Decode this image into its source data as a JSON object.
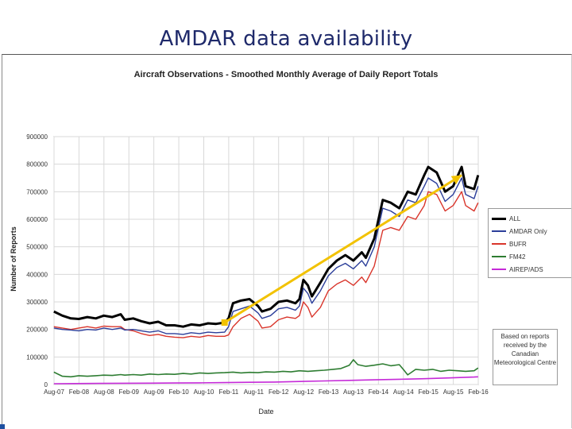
{
  "slide": {
    "title": "AMDAR data availability",
    "note": "Based on reports received by the Canadian Meteorological Centre"
  },
  "chart_data": {
    "type": "line",
    "title": "Aircraft Observations - Smoothed Monthly Average of Daily Report Totals",
    "xlabel": "Date",
    "ylabel": "Number of Reports",
    "ylim": [
      0,
      900000
    ],
    "yticks": [
      0,
      100000,
      200000,
      300000,
      400000,
      500000,
      600000,
      700000,
      800000,
      900000
    ],
    "x_range": [
      2007.583,
      2016.083
    ],
    "categories": [
      "Aug-07",
      "Feb-08",
      "Aug-08",
      "Feb-09",
      "Aug-09",
      "Feb-10",
      "Aug-10",
      "Feb-11",
      "Aug-11",
      "Feb-12",
      "Aug-12",
      "Feb-13",
      "Aug-13",
      "Feb-14",
      "Aug-14",
      "Feb-15",
      "Aug-15",
      "Feb-16"
    ],
    "grid": true,
    "legend": "right",
    "series": [
      {
        "name": "ALL",
        "color": "#000000",
        "values": [
          [
            2007.58,
            265000
          ],
          [
            2007.75,
            250000
          ],
          [
            2007.92,
            240000
          ],
          [
            2008.08,
            238000
          ],
          [
            2008.25,
            245000
          ],
          [
            2008.42,
            240000
          ],
          [
            2008.58,
            250000
          ],
          [
            2008.75,
            245000
          ],
          [
            2008.92,
            255000
          ],
          [
            2009.0,
            235000
          ],
          [
            2009.17,
            240000
          ],
          [
            2009.33,
            230000
          ],
          [
            2009.5,
            222000
          ],
          [
            2009.67,
            228000
          ],
          [
            2009.83,
            215000
          ],
          [
            2010.0,
            215000
          ],
          [
            2010.17,
            210000
          ],
          [
            2010.33,
            218000
          ],
          [
            2010.5,
            215000
          ],
          [
            2010.67,
            222000
          ],
          [
            2010.83,
            220000
          ],
          [
            2011.0,
            225000
          ],
          [
            2011.08,
            240000
          ],
          [
            2011.17,
            295000
          ],
          [
            2011.33,
            305000
          ],
          [
            2011.5,
            310000
          ],
          [
            2011.67,
            285000
          ],
          [
            2011.75,
            265000
          ],
          [
            2011.92,
            275000
          ],
          [
            2012.08,
            300000
          ],
          [
            2012.25,
            305000
          ],
          [
            2012.42,
            295000
          ],
          [
            2012.5,
            310000
          ],
          [
            2012.58,
            380000
          ],
          [
            2012.67,
            360000
          ],
          [
            2012.75,
            320000
          ],
          [
            2012.92,
            370000
          ],
          [
            2013.08,
            420000
          ],
          [
            2013.25,
            450000
          ],
          [
            2013.42,
            470000
          ],
          [
            2013.58,
            450000
          ],
          [
            2013.75,
            480000
          ],
          [
            2013.83,
            460000
          ],
          [
            2014.0,
            530000
          ],
          [
            2014.17,
            670000
          ],
          [
            2014.33,
            660000
          ],
          [
            2014.5,
            640000
          ],
          [
            2014.67,
            700000
          ],
          [
            2014.83,
            690000
          ],
          [
            2015.0,
            760000
          ],
          [
            2015.08,
            790000
          ],
          [
            2015.25,
            770000
          ],
          [
            2015.42,
            700000
          ],
          [
            2015.58,
            720000
          ],
          [
            2015.75,
            790000
          ],
          [
            2015.83,
            720000
          ],
          [
            2016.0,
            710000
          ],
          [
            2016.08,
            760000
          ]
        ]
      },
      {
        "name": "AMDAR Only",
        "color": "#2b3e9a",
        "values": [
          [
            2007.58,
            205000
          ],
          [
            2007.75,
            200000
          ],
          [
            2007.92,
            198000
          ],
          [
            2008.08,
            195000
          ],
          [
            2008.25,
            200000
          ],
          [
            2008.42,
            198000
          ],
          [
            2008.58,
            205000
          ],
          [
            2008.75,
            200000
          ],
          [
            2008.92,
            205000
          ],
          [
            2009.0,
            198000
          ],
          [
            2009.17,
            200000
          ],
          [
            2009.33,
            195000
          ],
          [
            2009.5,
            190000
          ],
          [
            2009.67,
            195000
          ],
          [
            2009.83,
            185000
          ],
          [
            2010.0,
            185000
          ],
          [
            2010.17,
            182000
          ],
          [
            2010.33,
            188000
          ],
          [
            2010.5,
            185000
          ],
          [
            2010.67,
            190000
          ],
          [
            2010.83,
            188000
          ],
          [
            2011.0,
            190000
          ],
          [
            2011.08,
            210000
          ],
          [
            2011.17,
            265000
          ],
          [
            2011.33,
            275000
          ],
          [
            2011.5,
            285000
          ],
          [
            2011.67,
            260000
          ],
          [
            2011.75,
            240000
          ],
          [
            2011.92,
            250000
          ],
          [
            2012.08,
            275000
          ],
          [
            2012.25,
            280000
          ],
          [
            2012.42,
            270000
          ],
          [
            2012.5,
            285000
          ],
          [
            2012.58,
            350000
          ],
          [
            2012.67,
            330000
          ],
          [
            2012.75,
            295000
          ],
          [
            2012.92,
            340000
          ],
          [
            2013.08,
            395000
          ],
          [
            2013.25,
            425000
          ],
          [
            2013.42,
            440000
          ],
          [
            2013.58,
            420000
          ],
          [
            2013.75,
            450000
          ],
          [
            2013.83,
            430000
          ],
          [
            2014.0,
            500000
          ],
          [
            2014.17,
            640000
          ],
          [
            2014.33,
            630000
          ],
          [
            2014.5,
            610000
          ],
          [
            2014.67,
            670000
          ],
          [
            2014.83,
            660000
          ],
          [
            2015.0,
            720000
          ],
          [
            2015.08,
            750000
          ],
          [
            2015.25,
            730000
          ],
          [
            2015.42,
            665000
          ],
          [
            2015.58,
            690000
          ],
          [
            2015.75,
            750000
          ],
          [
            2015.83,
            690000
          ],
          [
            2016.0,
            675000
          ],
          [
            2016.08,
            720000
          ]
        ]
      },
      {
        "name": "BUFR",
        "color": "#d9352b",
        "values": [
          [
            2007.58,
            210000
          ],
          [
            2007.75,
            205000
          ],
          [
            2007.92,
            200000
          ],
          [
            2008.08,
            205000
          ],
          [
            2008.25,
            210000
          ],
          [
            2008.42,
            205000
          ],
          [
            2008.58,
            212000
          ],
          [
            2008.75,
            210000
          ],
          [
            2008.92,
            210000
          ],
          [
            2009.0,
            200000
          ],
          [
            2009.17,
            195000
          ],
          [
            2009.33,
            185000
          ],
          [
            2009.5,
            178000
          ],
          [
            2009.67,
            182000
          ],
          [
            2009.83,
            175000
          ],
          [
            2010.0,
            172000
          ],
          [
            2010.17,
            170000
          ],
          [
            2010.33,
            175000
          ],
          [
            2010.5,
            172000
          ],
          [
            2010.67,
            178000
          ],
          [
            2010.83,
            175000
          ],
          [
            2011.0,
            175000
          ],
          [
            2011.08,
            180000
          ],
          [
            2011.17,
            210000
          ],
          [
            2011.33,
            240000
          ],
          [
            2011.5,
            255000
          ],
          [
            2011.67,
            230000
          ],
          [
            2011.75,
            205000
          ],
          [
            2011.92,
            210000
          ],
          [
            2012.08,
            235000
          ],
          [
            2012.25,
            245000
          ],
          [
            2012.42,
            240000
          ],
          [
            2012.5,
            250000
          ],
          [
            2012.58,
            300000
          ],
          [
            2012.67,
            280000
          ],
          [
            2012.75,
            245000
          ],
          [
            2012.92,
            280000
          ],
          [
            2013.08,
            340000
          ],
          [
            2013.25,
            365000
          ],
          [
            2013.42,
            380000
          ],
          [
            2013.58,
            360000
          ],
          [
            2013.75,
            390000
          ],
          [
            2013.83,
            370000
          ],
          [
            2014.0,
            430000
          ],
          [
            2014.17,
            560000
          ],
          [
            2014.33,
            570000
          ],
          [
            2014.5,
            560000
          ],
          [
            2014.67,
            610000
          ],
          [
            2014.83,
            600000
          ],
          [
            2015.0,
            650000
          ],
          [
            2015.08,
            700000
          ],
          [
            2015.25,
            690000
          ],
          [
            2015.42,
            630000
          ],
          [
            2015.58,
            650000
          ],
          [
            2015.75,
            700000
          ],
          [
            2015.83,
            650000
          ],
          [
            2016.0,
            630000
          ],
          [
            2016.08,
            660000
          ]
        ]
      },
      {
        "name": "FM42",
        "color": "#2e7d32",
        "values": [
          [
            2007.58,
            45000
          ],
          [
            2007.75,
            30000
          ],
          [
            2007.92,
            28000
          ],
          [
            2008.08,
            32000
          ],
          [
            2008.25,
            30000
          ],
          [
            2008.42,
            32000
          ],
          [
            2008.58,
            34000
          ],
          [
            2008.75,
            33000
          ],
          [
            2008.92,
            36000
          ],
          [
            2009.0,
            34000
          ],
          [
            2009.17,
            36000
          ],
          [
            2009.33,
            34000
          ],
          [
            2009.5,
            38000
          ],
          [
            2009.67,
            36000
          ],
          [
            2009.83,
            38000
          ],
          [
            2010.0,
            37000
          ],
          [
            2010.17,
            40000
          ],
          [
            2010.33,
            38000
          ],
          [
            2010.5,
            42000
          ],
          [
            2010.67,
            40000
          ],
          [
            2010.83,
            42000
          ],
          [
            2011.0,
            43000
          ],
          [
            2011.17,
            45000
          ],
          [
            2011.33,
            42000
          ],
          [
            2011.5,
            44000
          ],
          [
            2011.67,
            43000
          ],
          [
            2011.83,
            46000
          ],
          [
            2012.0,
            45000
          ],
          [
            2012.17,
            48000
          ],
          [
            2012.33,
            46000
          ],
          [
            2012.5,
            50000
          ],
          [
            2012.67,
            48000
          ],
          [
            2012.83,
            50000
          ],
          [
            2013.0,
            52000
          ],
          [
            2013.17,
            55000
          ],
          [
            2013.33,
            58000
          ],
          [
            2013.5,
            70000
          ],
          [
            2013.58,
            90000
          ],
          [
            2013.67,
            72000
          ],
          [
            2013.83,
            66000
          ],
          [
            2014.0,
            70000
          ],
          [
            2014.17,
            75000
          ],
          [
            2014.33,
            68000
          ],
          [
            2014.5,
            72000
          ],
          [
            2014.58,
            55000
          ],
          [
            2014.67,
            35000
          ],
          [
            2014.75,
            45000
          ],
          [
            2014.83,
            55000
          ],
          [
            2015.0,
            52000
          ],
          [
            2015.17,
            55000
          ],
          [
            2015.33,
            48000
          ],
          [
            2015.5,
            52000
          ],
          [
            2015.67,
            50000
          ],
          [
            2015.83,
            48000
          ],
          [
            2016.0,
            50000
          ],
          [
            2016.08,
            60000
          ]
        ]
      },
      {
        "name": "AIREP/ADS",
        "color": "#c52ad8",
        "values": [
          [
            2007.58,
            3000
          ],
          [
            2008.0,
            3500
          ],
          [
            2008.5,
            4000
          ],
          [
            2009.0,
            4500
          ],
          [
            2009.5,
            5000
          ],
          [
            2010.0,
            5500
          ],
          [
            2010.5,
            6000
          ],
          [
            2011.0,
            7000
          ],
          [
            2011.5,
            8000
          ],
          [
            2012.0,
            9000
          ],
          [
            2012.5,
            11000
          ],
          [
            2013.0,
            13000
          ],
          [
            2013.5,
            15000
          ],
          [
            2014.0,
            17000
          ],
          [
            2014.5,
            19000
          ],
          [
            2015.0,
            21000
          ],
          [
            2015.5,
            24000
          ],
          [
            2016.0,
            27000
          ],
          [
            2016.08,
            28000
          ]
        ]
      }
    ],
    "annotation_arrow": {
      "from": [
        2011.0,
        225000
      ],
      "to": [
        2015.75,
        760000
      ],
      "color": "#f2c200"
    }
  }
}
